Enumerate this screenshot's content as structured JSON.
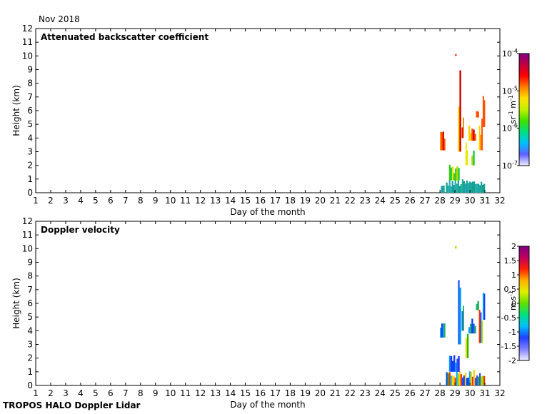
{
  "header": {
    "month": "Nov 2018"
  },
  "footer": {
    "instrument": "TROPOS HALO Doppler Lidar"
  },
  "chart_data": [
    {
      "type": "heatmap",
      "title": "Attenuated backscatter coefficient",
      "xlabel": "Day of the month",
      "ylabel": "Height (km)",
      "xticks": [
        "1",
        "2",
        "3",
        "4",
        "5",
        "6",
        "7",
        "8",
        "9",
        "10",
        "11",
        "12",
        "13",
        "14",
        "15",
        "16",
        "17",
        "18",
        "19",
        "20",
        "21",
        "22",
        "23",
        "24",
        "25",
        "26",
        "27",
        "28",
        "29",
        "30",
        "31",
        "32"
      ],
      "yticks": [
        "0",
        "1",
        "2",
        "3",
        "4",
        "5",
        "6",
        "7",
        "8",
        "9",
        "10",
        "11",
        "12"
      ],
      "xlim": [
        1,
        32
      ],
      "ylim": [
        0,
        12
      ],
      "colorbar": {
        "scale": "log",
        "range": [
          1e-07,
          0.0001
        ],
        "tick_base": [
          "10",
          "10",
          "10",
          "10"
        ],
        "tick_exp": [
          "-7",
          "-6",
          "-5",
          "-4"
        ],
        "unit_parts": [
          "sr",
          "-1",
          " m",
          "-1"
        ]
      },
      "data_summary": "signal present only from about day 28 to day 31",
      "regions": [
        {
          "x": [
            28.0,
            28.35
          ],
          "y": [
            3.1,
            4.8
          ],
          "value": "high"
        },
        {
          "x": [
            28.05,
            28.3
          ],
          "y": [
            0,
            0.6
          ],
          "value": "low"
        },
        {
          "x": [
            28.4,
            31.0
          ],
          "y": [
            0,
            1.0
          ],
          "value": "low"
        },
        {
          "x": [
            28.6,
            29.3
          ],
          "y": [
            0.9,
            2.2
          ],
          "value": "mid"
        },
        {
          "x": [
            29.2,
            29.4
          ],
          "y": [
            3.0,
            9.3
          ],
          "value": "high"
        },
        {
          "x": [
            29.45,
            29.6
          ],
          "y": [
            4.0,
            5.9
          ],
          "value": "high"
        },
        {
          "x": [
            29.7,
            29.85
          ],
          "y": [
            2.0,
            3.9
          ],
          "value": "mid"
        },
        {
          "x": [
            29.9,
            30.4
          ],
          "y": [
            3.8,
            4.9
          ],
          "value": "high"
        },
        {
          "x": [
            30.1,
            30.3
          ],
          "y": [
            2.0,
            3.6
          ],
          "value": "mid"
        },
        {
          "x": [
            30.4,
            30.6
          ],
          "y": [
            5.5,
            6.3
          ],
          "value": "high"
        },
        {
          "x": [
            30.6,
            30.85
          ],
          "y": [
            3.1,
            5.9
          ],
          "value": "high"
        },
        {
          "x": [
            30.85,
            31.0
          ],
          "y": [
            4.8,
            7.4
          ],
          "value": "high"
        },
        {
          "x": [
            29.0,
            29.1
          ],
          "y": [
            10.0,
            10.2
          ],
          "value": "high"
        }
      ]
    },
    {
      "type": "heatmap",
      "title": "Doppler velocity",
      "xlabel": "Day of the month",
      "ylabel": "Height (km)",
      "xticks": [
        "1",
        "2",
        "3",
        "4",
        "5",
        "6",
        "7",
        "8",
        "9",
        "10",
        "11",
        "12",
        "13",
        "14",
        "15",
        "16",
        "17",
        "18",
        "19",
        "20",
        "21",
        "22",
        "23",
        "24",
        "25",
        "26",
        "27",
        "28",
        "29",
        "30",
        "31",
        "32"
      ],
      "yticks": [
        "0",
        "1",
        "2",
        "3",
        "4",
        "5",
        "6",
        "7",
        "8",
        "9",
        "10",
        "11",
        "12"
      ],
      "xlim": [
        1,
        32
      ],
      "ylim": [
        0,
        12
      ],
      "colorbar": {
        "scale": "linear",
        "range": [
          -2,
          2
        ],
        "ticks": [
          "-2",
          "-1.5",
          "-1",
          "-0.5",
          "0",
          "0.5",
          "1",
          "1.5",
          "2"
        ],
        "unit_parts": [
          "m s",
          "-1"
        ]
      },
      "data_summary": "signal present only from about day 28 to day 31",
      "regions": [
        {
          "x": [
            28.0,
            28.35
          ],
          "y": [
            3.5,
            4.8
          ],
          "value": "down"
        },
        {
          "x": [
            28.4,
            31.0
          ],
          "y": [
            0,
            1.2
          ],
          "value": "mixed"
        },
        {
          "x": [
            28.6,
            29.3
          ],
          "y": [
            1.0,
            2.4
          ],
          "value": "down"
        },
        {
          "x": [
            29.2,
            29.4
          ],
          "y": [
            3.0,
            9.3
          ],
          "value": "down"
        },
        {
          "x": [
            29.45,
            29.6
          ],
          "y": [
            4.0,
            5.9
          ],
          "value": "down"
        },
        {
          "x": [
            29.7,
            29.9
          ],
          "y": [
            2.0,
            3.9
          ],
          "value": "mixed"
        },
        {
          "x": [
            29.9,
            30.4
          ],
          "y": [
            3.8,
            4.9
          ],
          "value": "down"
        },
        {
          "x": [
            30.4,
            30.6
          ],
          "y": [
            5.5,
            6.3
          ],
          "value": "down"
        },
        {
          "x": [
            30.6,
            30.85
          ],
          "y": [
            3.1,
            5.9
          ],
          "value": "mixed"
        },
        {
          "x": [
            30.85,
            31.0
          ],
          "y": [
            4.8,
            7.4
          ],
          "value": "mixed"
        },
        {
          "x": [
            29.0,
            29.1
          ],
          "y": [
            10.0,
            10.2
          ],
          "value": "mixed"
        }
      ]
    }
  ]
}
